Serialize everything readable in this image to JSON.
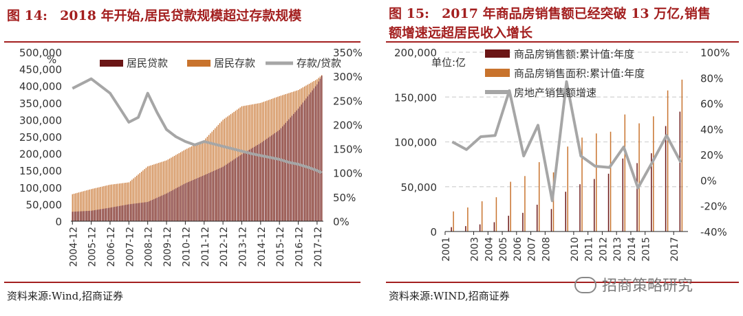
{
  "left": {
    "fig_label": "图 14:",
    "fig_title": "2018 年开始,居民贷款规模超过存款规模",
    "source": "资料来源:Wind,招商证券"
  },
  "right": {
    "fig_label": "图 15:",
    "fig_title_line1": "2017 年商品房销售额已经突破 13 万亿,销售",
    "fig_title_line2": "额增速远超居民收入增长",
    "source": "资料来源:WIND,招商证券"
  },
  "watermark": "招商策略研究",
  "colors": {
    "title_red": "#a31f1f",
    "loan": "#6b1616",
    "deposit": "#c8732d",
    "line": "#a6a6a6"
  },
  "chart_data": [
    {
      "type": "bar",
      "subtype": "bar+line",
      "unit_label": "%",
      "legend": [
        "居民贷款",
        "居民存款",
        "存款/贷款"
      ],
      "legend_position": "top",
      "x_ticks": [
        "2004-12",
        "2005-12",
        "2006-12",
        "2007-12",
        "2008-12",
        "2009-12",
        "2010-12",
        "2011-12",
        "2012-12",
        "2013-12",
        "2014-12",
        "2015-12",
        "2016-12",
        "2017-12"
      ],
      "y_left_ticks": [
        "500,000",
        "450,000",
        "400,000",
        "350,000",
        "300,000",
        "250,000",
        "200,000",
        "150,000",
        "100,000",
        "50,000",
        "0"
      ],
      "y_right_ticks": [
        "350%",
        "300%",
        "250%",
        "200%",
        "150%",
        "100%",
        "50%",
        "0%"
      ],
      "ylim_left": [
        0,
        500000
      ],
      "ylim_right": [
        0,
        350
      ],
      "x_range": [
        "2004-12",
        "2018-03"
      ],
      "grid": false,
      "series": [
        {
          "name": "居民贷款",
          "axis": "left",
          "x": [
            "2004-12",
            "2005-12",
            "2006-12",
            "2007-12",
            "2008-12",
            "2009-12",
            "2010-12",
            "2011-12",
            "2012-12",
            "2013-12",
            "2014-12",
            "2015-12",
            "2016-12",
            "2017-12",
            "2018-03"
          ],
          "values": [
            28000,
            31000,
            40000,
            50000,
            57000,
            82000,
            112000,
            136000,
            161000,
            198000,
            231000,
            270000,
            333000,
            405000,
            430000
          ]
        },
        {
          "name": "居民存款",
          "axis": "left",
          "x": [
            "2004-12",
            "2005-12",
            "2006-12",
            "2007-12",
            "2008-12",
            "2009-12",
            "2010-12",
            "2011-12",
            "2012-12",
            "2013-12",
            "2014-12",
            "2015-12",
            "2016-12",
            "2017-12",
            "2018-03"
          ],
          "values": [
            80000,
            95000,
            108000,
            115000,
            162000,
            180000,
            212000,
            240000,
            300000,
            340000,
            350000,
            370000,
            388000,
            420000,
            432000
          ]
        },
        {
          "name": "存款/贷款",
          "axis": "right",
          "x": [
            "2004-12",
            "2005-06",
            "2005-12",
            "2006-06",
            "2006-12",
            "2007-06",
            "2007-12",
            "2008-06",
            "2008-12",
            "2009-06",
            "2009-12",
            "2010-06",
            "2010-12",
            "2011-06",
            "2011-12",
            "2012-06",
            "2012-12",
            "2013-06",
            "2013-12",
            "2014-06",
            "2014-12",
            "2015-06",
            "2015-12",
            "2016-06",
            "2016-12",
            "2017-06",
            "2017-12",
            "2018-03"
          ],
          "values": [
            275,
            285,
            295,
            280,
            265,
            235,
            205,
            215,
            265,
            225,
            190,
            175,
            165,
            158,
            165,
            160,
            155,
            150,
            145,
            140,
            136,
            132,
            128,
            122,
            118,
            112,
            105,
            100
          ]
        }
      ]
    },
    {
      "type": "bar",
      "subtype": "bar+line",
      "unit_label": "单位:亿",
      "legend": [
        "商品房销售额:累计值:年度",
        "商品房销售面积:累计值:年度",
        "房地产销售额增速"
      ],
      "legend_position": "top-left",
      "x_ticks": [
        "2001",
        "2003",
        "2004",
        "2005",
        "2006",
        "2007",
        "2008",
        "2010",
        "2011",
        "2012",
        "2013",
        "2014",
        "2015",
        "2017"
      ],
      "y_left_ticks": [
        "200,000",
        "150,000",
        "100,000",
        "50,000",
        "0"
      ],
      "y_right_ticks": [
        "100%",
        "80%",
        "60%",
        "40%",
        "20%",
        "0%",
        "-20%",
        "-40%"
      ],
      "ylim_left": [
        0,
        200000
      ],
      "ylim_right": [
        -40,
        100
      ],
      "grid": true,
      "categories": [
        "2001",
        "2002",
        "2003",
        "2004",
        "2005",
        "2006",
        "2007",
        "2008",
        "2009",
        "2010",
        "2011",
        "2012",
        "2013",
        "2014",
        "2015",
        "2016",
        "2017"
      ],
      "series": [
        {
          "name": "商品房销售额:累计值:年度",
          "axis": "left",
          "values": [
            4863,
            6032,
            7956,
            10376,
            17576,
            20826,
            29889,
            25068,
            44355,
            52721,
            58589,
            64456,
            81428,
            76292,
            87281,
            117627,
            133701
          ]
        },
        {
          "name": "商品房销售面积:累计值:年度",
          "axis": "left",
          "values": [
            22412,
            26808,
            33718,
            38232,
            55486,
            61857,
            77355,
            65970,
            94755,
            104765,
            109367,
            111304,
            130551,
            120649,
            128495,
            157349,
            169408
          ]
        },
        {
          "name": "房地产销售额增速",
          "axis": "right",
          "values": [
            30,
            24,
            34,
            35,
            70,
            19,
            43,
            -16,
            77,
            19,
            11,
            10,
            26,
            -6,
            14,
            35,
            14
          ]
        }
      ]
    }
  ]
}
